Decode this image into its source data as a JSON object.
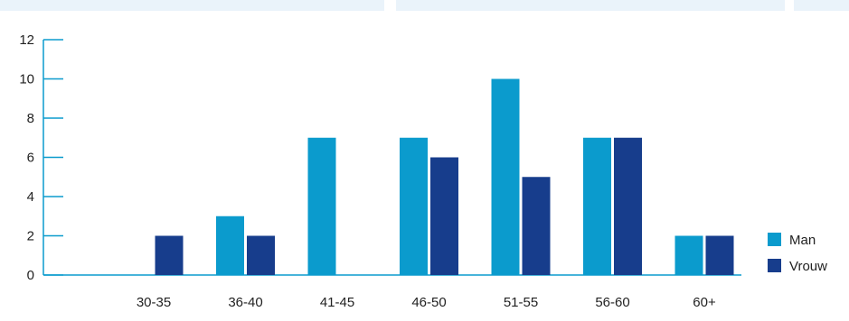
{
  "chart_data": {
    "type": "bar",
    "categories": [
      "30-35",
      "36-40",
      "41-45",
      "46-50",
      "51-55",
      "56-60",
      "60+"
    ],
    "series": [
      {
        "name": "Man",
        "values": [
          0,
          3,
          7,
          7,
          10,
          7,
          2
        ],
        "color": "#0b9bcd"
      },
      {
        "name": "Vrouw",
        "values": [
          2,
          2,
          0,
          6,
          5,
          7,
          2
        ],
        "color": "#173d8c"
      }
    ],
    "yticks": [
      0,
      2,
      4,
      6,
      8,
      10,
      12
    ],
    "ylim": [
      0,
      12
    ],
    "title": "",
    "xlabel": "",
    "ylabel": "",
    "legend": "right",
    "grid": false,
    "axis_color": "#0b9bcd"
  }
}
